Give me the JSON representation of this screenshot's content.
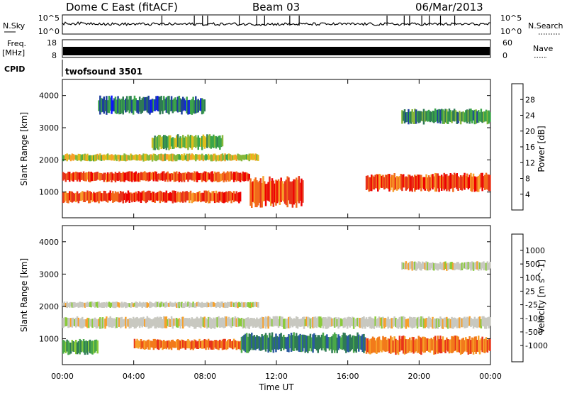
{
  "header": {
    "title": "Dome C East (fitACF)",
    "beam": "Beam 03",
    "date": "06/Mar/2013"
  },
  "status_panels": {
    "nsky_label": "N.Sky",
    "nsearch_label": "N.Search",
    "noise_ticks_left": [
      "10^5",
      "10^0"
    ],
    "noise_ticks_right": [
      "10^5",
      "10^0"
    ],
    "freq_label_top": "Freq.",
    "freq_label_unit": "[MHz]",
    "freq_ticks": [
      "18",
      "8"
    ],
    "nave_label": "Nave",
    "nave_ticks": [
      "60",
      "0"
    ],
    "cpid_label": "CPID",
    "cpid_text": "twofsound 3501"
  },
  "chart_data": [
    {
      "type": "heatmap",
      "variable": "Power",
      "ylabel": "Slant Range [km]",
      "xlabel": "Time UT",
      "x_ticks": [
        "00:00",
        "04:00",
        "08:00",
        "12:00",
        "16:00",
        "20:00",
        "00:00"
      ],
      "y_ticks": [
        "1000",
        "2000",
        "3000",
        "4000"
      ],
      "ylim": [
        200,
        4500
      ],
      "colorbar": {
        "label": "Power [dB]",
        "ticks": [
          "4",
          "8",
          "12",
          "16",
          "20",
          "24",
          "28"
        ],
        "colors": [
          "#0a14ff",
          "#1d3e9c",
          "#2f7a55",
          "#3ba54a",
          "#86b83a",
          "#e0bd1c",
          "#f7a02a",
          "#f26a1b",
          "#e8331a",
          "#ee0000"
        ]
      },
      "bands": [
        {
          "range_km": [
            1300,
            1650
          ],
          "time_h": [
            0,
            10.5
          ],
          "level_db": 28
        },
        {
          "range_km": [
            650,
            1050
          ],
          "time_h": [
            0,
            10
          ],
          "level_db": 26
        },
        {
          "range_km": [
            500,
            1500
          ],
          "time_h": [
            10.5,
            13.5
          ],
          "level_db": 27
        },
        {
          "range_km": [
            1000,
            1600
          ],
          "time_h": [
            17,
            24
          ],
          "level_db": 25
        },
        {
          "range_km": [
            1950,
            2200
          ],
          "time_h": [
            0,
            11
          ],
          "level_db": 15
        },
        {
          "range_km": [
            2300,
            2800
          ],
          "time_h": [
            5,
            9
          ],
          "level_db": 12
        },
        {
          "range_km": [
            3100,
            3600
          ],
          "time_h": [
            19,
            24
          ],
          "level_db": 10
        },
        {
          "range_km": [
            3400,
            4000
          ],
          "time_h": [
            2,
            8
          ],
          "level_db": 8
        }
      ]
    },
    {
      "type": "heatmap",
      "variable": "Velocity",
      "ylabel": "Slant Range [km]",
      "xlabel": "Time UT",
      "x_ticks": [
        "00:00",
        "04:00",
        "08:00",
        "12:00",
        "16:00",
        "20:00",
        "00:00"
      ],
      "y_ticks": [
        "1000",
        "2000",
        "3000",
        "4000"
      ],
      "ylim": [
        200,
        4500
      ],
      "colorbar": {
        "label": "Velocity [m s^-1]",
        "ticks": [
          "1000",
          "500",
          "100",
          "25",
          "-25",
          "-100",
          "-500",
          "-1000"
        ],
        "colors": [
          "#1a2fc9",
          "#2a5aa0",
          "#2e7a55",
          "#4aa84a",
          "#8acb3a",
          "#c8c8c0",
          "#c8c8c0",
          "#f7a02a",
          "#f27a1b",
          "#e8331a",
          "#ee0000"
        ]
      },
      "bands": [
        {
          "range_km": [
            1300,
            1700
          ],
          "time_h": [
            0,
            24
          ],
          "velocity": 0
        },
        {
          "range_km": [
            1950,
            2150
          ],
          "time_h": [
            0,
            11
          ],
          "velocity": 0
        },
        {
          "range_km": [
            500,
            1000
          ],
          "time_h": [
            0,
            2
          ],
          "velocity": 200
        },
        {
          "range_km": [
            650,
            1000
          ],
          "time_h": [
            4,
            10
          ],
          "velocity": -300
        },
        {
          "range_km": [
            550,
            1200
          ],
          "time_h": [
            10,
            17
          ],
          "velocity": 400
        },
        {
          "range_km": [
            500,
            1100
          ],
          "time_h": [
            17,
            24
          ],
          "velocity": -200
        },
        {
          "range_km": [
            3100,
            3400
          ],
          "time_h": [
            19,
            24
          ],
          "velocity": 0
        }
      ]
    }
  ]
}
